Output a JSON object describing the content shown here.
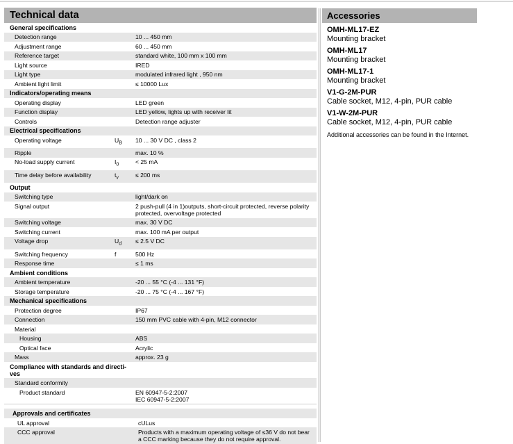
{
  "technical_data": {
    "title": "Technical data",
    "sections": [
      {
        "title": "General specifications",
        "rows": [
          {
            "label": "Detection range",
            "symbol": "",
            "value": "10 ... 450 mm"
          },
          {
            "label": "Adjustment range",
            "symbol": "",
            "value": "60 ... 450 mm"
          },
          {
            "label": "Reference target",
            "symbol": "",
            "value": "standard white, 100 mm x 100 mm"
          },
          {
            "label": "Light source",
            "symbol": "",
            "value": "IRED"
          },
          {
            "label": "Light type",
            "symbol": "",
            "value": "modulated infrared light , 950 nm"
          },
          {
            "label": "Ambient light limit",
            "symbol": "",
            "value": "≤ 10000 Lux"
          }
        ]
      },
      {
        "title": "Indicators/operating means",
        "rows": [
          {
            "label": "Operating display",
            "symbol": "",
            "value": "LED green"
          },
          {
            "label": "Function display",
            "symbol": "",
            "value": "LED yellow, lights up with receiver lit"
          },
          {
            "label": "Controls",
            "symbol": "",
            "value": "Detection range  adjuster"
          }
        ]
      },
      {
        "title": "Electrical specifications",
        "rows": [
          {
            "label": "Operating voltage",
            "symbol": "U",
            "sub": "B",
            "value": "10 ... 30 V DC , class 2"
          },
          {
            "label": "Ripple",
            "symbol": "",
            "value": "max. 10  %"
          },
          {
            "label": "No-load supply current",
            "symbol": "I",
            "sub": "0",
            "value": "< 25 mA"
          },
          {
            "label": "Time delay before availability",
            "symbol": "t",
            "sub": "v",
            "value": "≤ 200 ms"
          }
        ]
      },
      {
        "title": "Output",
        "rows": [
          {
            "label": "Switching type",
            "symbol": "",
            "value": "light/dark on"
          },
          {
            "label": "Signal output",
            "symbol": "",
            "value": "2 push-pull (4 in 1)outputs, short-circuit protected, reverse polarity protected, overvoltage protected"
          },
          {
            "label": "Switching voltage",
            "symbol": "",
            "value": "max. 30 V DC"
          },
          {
            "label": "Switching current",
            "symbol": "",
            "value": "max. 100 mA per output"
          },
          {
            "label": "Voltage drop",
            "symbol": "U",
            "sub": "d",
            "value": "≤ 2.5 V DC"
          },
          {
            "label": "Switching frequency",
            "symbol": "f",
            "value": "500 Hz"
          },
          {
            "label": "Response time",
            "symbol": "",
            "value": "≤ 1 ms"
          }
        ]
      },
      {
        "title": "Ambient conditions",
        "rows": [
          {
            "label": "Ambient temperature",
            "symbol": "",
            "value": "-20 ... 55 °C (-4 ... 131 °F)"
          },
          {
            "label": "Storage temperature",
            "symbol": "",
            "value": "-20 ... 75 °C (-4 ... 167 °F)"
          }
        ]
      },
      {
        "title": "Mechanical specifications",
        "rows": [
          {
            "label": "Protection degree",
            "symbol": "",
            "value": "IP67"
          },
          {
            "label": "Connection",
            "symbol": "",
            "value": "150 mm PVC cable with 4-pin, M12 connector"
          },
          {
            "label": "Material",
            "symbol": "",
            "value": ""
          },
          {
            "label": "Housing",
            "level": 2,
            "symbol": "",
            "value": "ABS"
          },
          {
            "label": "Optical face",
            "level": 2,
            "symbol": "",
            "value": "Acrylic"
          },
          {
            "label": "Mass",
            "symbol": "",
            "value": "approx. 23 g"
          }
        ]
      },
      {
        "title": "Compliance with standards and directi-ves",
        "rows": [
          {
            "label": "Standard conformity",
            "symbol": "",
            "value": ""
          },
          {
            "label": "Product standard",
            "level": 2,
            "symbol": "",
            "value": "EN 60947-5-2:2007\nIEC 60947-5-2:2007"
          }
        ]
      }
    ]
  },
  "approvals": {
    "title": "Approvals and certificates",
    "rows": [
      {
        "label": "UL approval",
        "value": "cULus"
      },
      {
        "label": "CCC approval",
        "value": "Products with a maximum operating voltage of ≤36 V do not bear a CCC marking because they do not require approval."
      }
    ]
  },
  "accessories": {
    "title": "Accessories",
    "items": [
      {
        "name": "OMH-ML17-EZ",
        "description": "Mounting bracket"
      },
      {
        "name": "OMH-ML17",
        "description": "Mounting bracket"
      },
      {
        "name": "OMH-ML17-1",
        "description": "Mounting bracket"
      },
      {
        "name": "V1-G-2M-PUR",
        "description": "Cable socket, M12, 4-pin, PUR cable"
      },
      {
        "name": "V1-W-2M-PUR",
        "description": "Cable socket, M12, 4-pin, PUR cable"
      }
    ],
    "note": "Additional accessories can be found in the Internet."
  }
}
